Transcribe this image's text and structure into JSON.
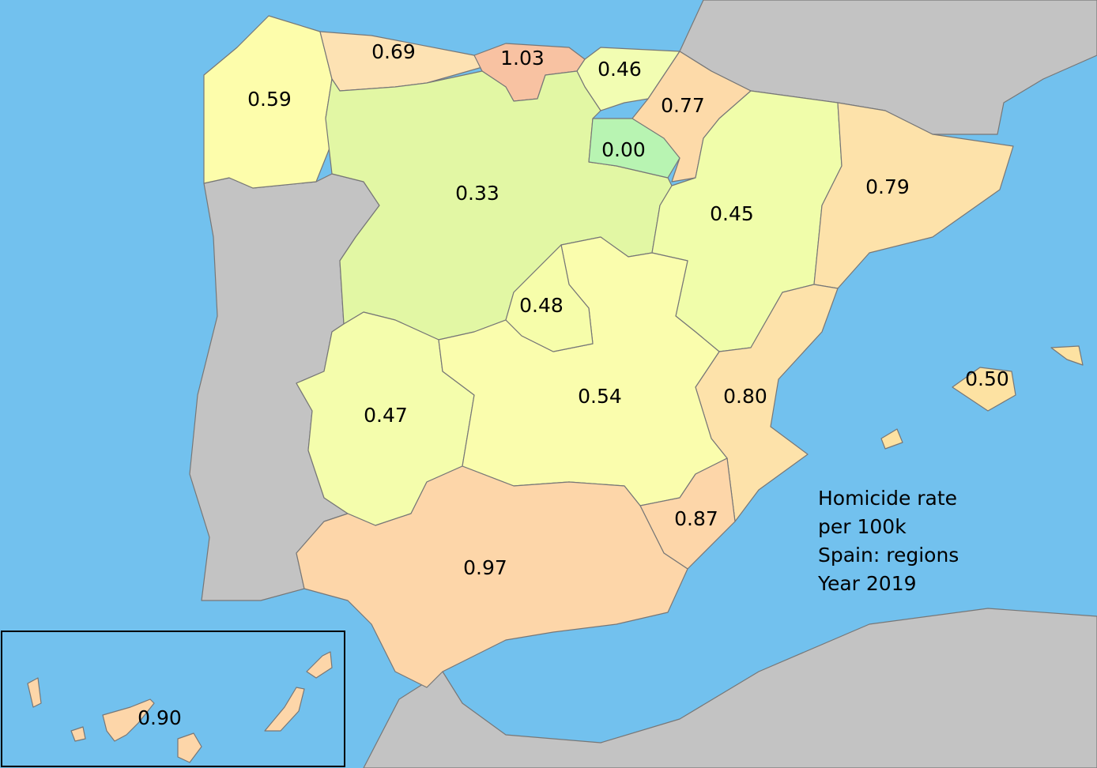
{
  "regions": [
    {
      "label": "0.59"
    },
    {
      "label": "0.69"
    },
    {
      "label": "1.03"
    },
    {
      "label": "0.46"
    },
    {
      "label": "0.77"
    },
    {
      "label": "0.00"
    },
    {
      "label": "0.33"
    },
    {
      "label": "0.45"
    },
    {
      "label": "0.79"
    },
    {
      "label": "0.48"
    },
    {
      "label": "0.47"
    },
    {
      "label": "0.54"
    },
    {
      "label": "0.80"
    },
    {
      "label": "0.87"
    },
    {
      "label": "0.97"
    },
    {
      "label": "0.50"
    },
    {
      "label": "0.90"
    }
  ],
  "legend": {
    "lines": [
      "Homicide rate",
      "per 100k",
      "Spain: regions",
      "Year 2019"
    ]
  }
}
